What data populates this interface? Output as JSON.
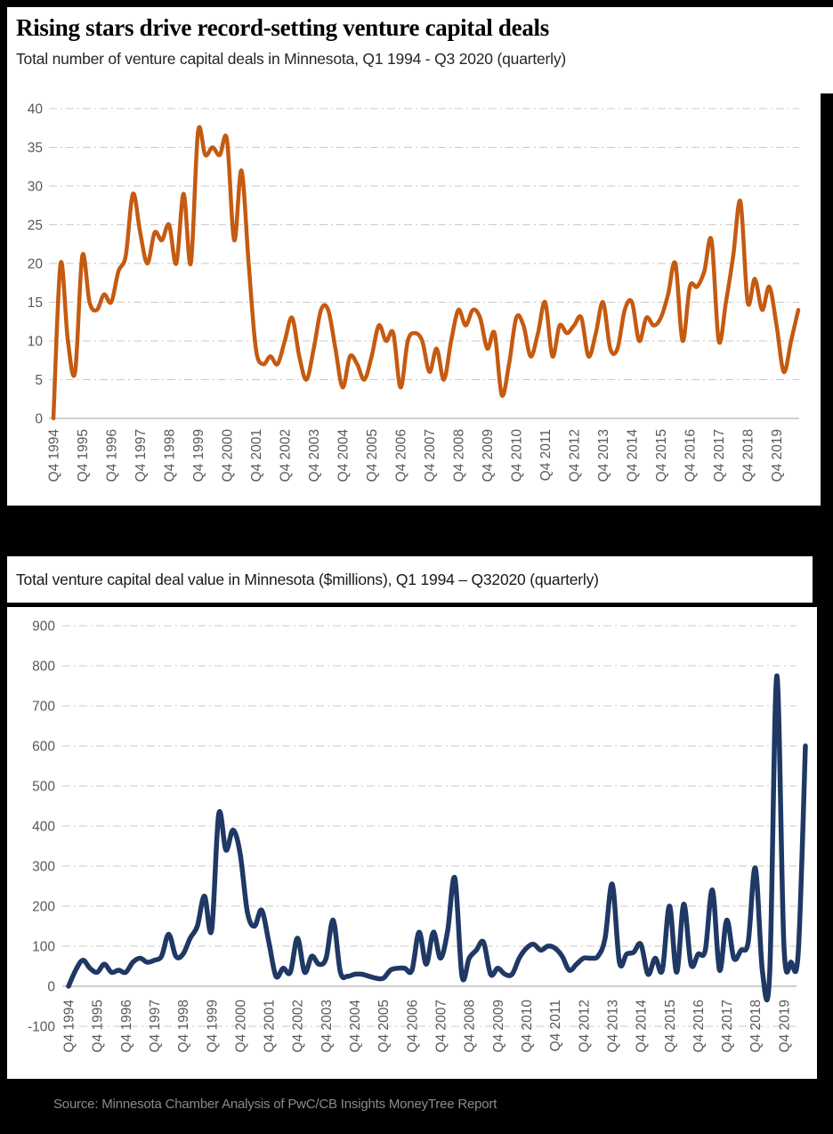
{
  "page": {
    "background": "#000000",
    "header": {
      "title": "Rising stars drive record-setting venture capital deals"
    },
    "footer": {
      "source": "Source: Minnesota Chamber Analysis of PwC/CB Insights MoneyTree Report"
    }
  },
  "chart_data": [
    {
      "type": "line",
      "title": "Total number of venture capital deals in Minnesota, Q1 1994 - Q3 2020 (quarterly)",
      "xlabel": "",
      "ylabel": "",
      "ylim": [
        0,
        40
      ],
      "yticks": [
        0,
        5,
        10,
        15,
        20,
        25,
        30,
        35,
        40
      ],
      "grid": "dashed horizontal",
      "legend": "none",
      "line_color": "#C55A11",
      "x_first_point": "Q4 1994",
      "x_last_point": "Q3 2020",
      "x_tick_interval": 4,
      "x_labels": [
        "Q4 1994",
        "Q4 1995",
        "Q4 1996",
        "Q4 1997",
        "Q4 1998",
        "Q4 1999",
        "Q4 2000",
        "Q4 2001",
        "Q4 2002",
        "Q4 2003",
        "Q4 2004",
        "Q4 2005",
        "Q4 2006",
        "Q4 2007",
        "Q4 2008",
        "Q4 2009",
        "Q4 2010",
        "Q4 2011",
        "Q4 2012",
        "Q4 2013",
        "Q4 2014",
        "Q4 2015",
        "Q4 2016",
        "Q4 2017",
        "Q4 2018",
        "Q4 2019"
      ],
      "values": [
        0,
        20,
        10,
        6,
        21,
        15,
        14,
        16,
        15,
        19,
        21,
        29,
        24,
        20,
        24,
        23,
        25,
        20,
        29,
        20,
        37,
        34,
        35,
        34,
        36,
        23,
        32,
        20,
        9,
        7,
        8,
        7,
        10,
        13,
        8,
        5,
        9,
        14,
        14,
        9,
        4,
        8,
        7,
        5,
        8,
        12,
        10,
        11,
        4,
        10,
        11,
        10,
        6,
        9,
        5,
        10,
        14,
        12,
        14,
        13,
        9,
        11,
        3,
        7,
        13,
        12,
        8,
        11,
        15,
        8,
        12,
        11,
        12,
        13,
        8,
        11,
        15,
        9,
        9,
        14,
        15,
        10,
        13,
        12,
        13,
        16,
        20,
        10,
        17,
        17,
        19,
        23,
        10,
        15,
        21,
        28,
        15,
        18,
        14,
        17,
        12,
        6,
        10,
        14
      ]
    },
    {
      "type": "line",
      "title": "Total venture capital deal value in Minnesota ($millions), Q1 1994 – Q32020 (quarterly)",
      "xlabel": "",
      "ylabel": "",
      "ylim": [
        -100,
        900
      ],
      "yticks": [
        -100,
        0,
        100,
        200,
        300,
        400,
        500,
        600,
        700,
        800,
        900
      ],
      "grid": "dashed horizontal",
      "legend": "none",
      "line_color": "#1F3864",
      "x_first_point": "Q4 1994",
      "x_last_point": "Q3 2020",
      "x_tick_interval": 4,
      "x_labels": [
        "Q4 1994",
        "Q4 1995",
        "Q4 1996",
        "Q4 1997",
        "Q4 1998",
        "Q4 1999",
        "Q4 2000",
        "Q4 2001",
        "Q4 2002",
        "Q4 2003",
        "Q4 2004",
        "Q4 2005",
        "Q4 2006",
        "Q4 2007",
        "Q4 2008",
        "Q4 2009",
        "Q4 2010",
        "Q4 2011",
        "Q4 2012",
        "Q4 2013",
        "Q4 2014",
        "Q4 2015",
        "Q4 2016",
        "Q4 2017",
        "Q4 2018",
        "Q4 2019"
      ],
      "values": [
        0,
        40,
        65,
        45,
        35,
        55,
        35,
        40,
        35,
        60,
        70,
        60,
        65,
        75,
        130,
        75,
        80,
        120,
        150,
        225,
        140,
        430,
        340,
        390,
        330,
        185,
        150,
        190,
        110,
        25,
        45,
        35,
        120,
        35,
        75,
        55,
        70,
        165,
        35,
        25,
        30,
        30,
        25,
        20,
        20,
        40,
        45,
        45,
        40,
        135,
        55,
        135,
        70,
        140,
        270,
        25,
        70,
        90,
        110,
        30,
        45,
        30,
        30,
        70,
        95,
        105,
        90,
        100,
        95,
        75,
        40,
        55,
        70,
        70,
        75,
        120,
        255,
        60,
        80,
        85,
        105,
        30,
        70,
        40,
        200,
        35,
        205,
        55,
        80,
        90,
        240,
        40,
        165,
        70,
        90,
        110,
        295,
        35,
        30,
        775,
        100,
        60,
        85,
        600
      ]
    }
  ]
}
